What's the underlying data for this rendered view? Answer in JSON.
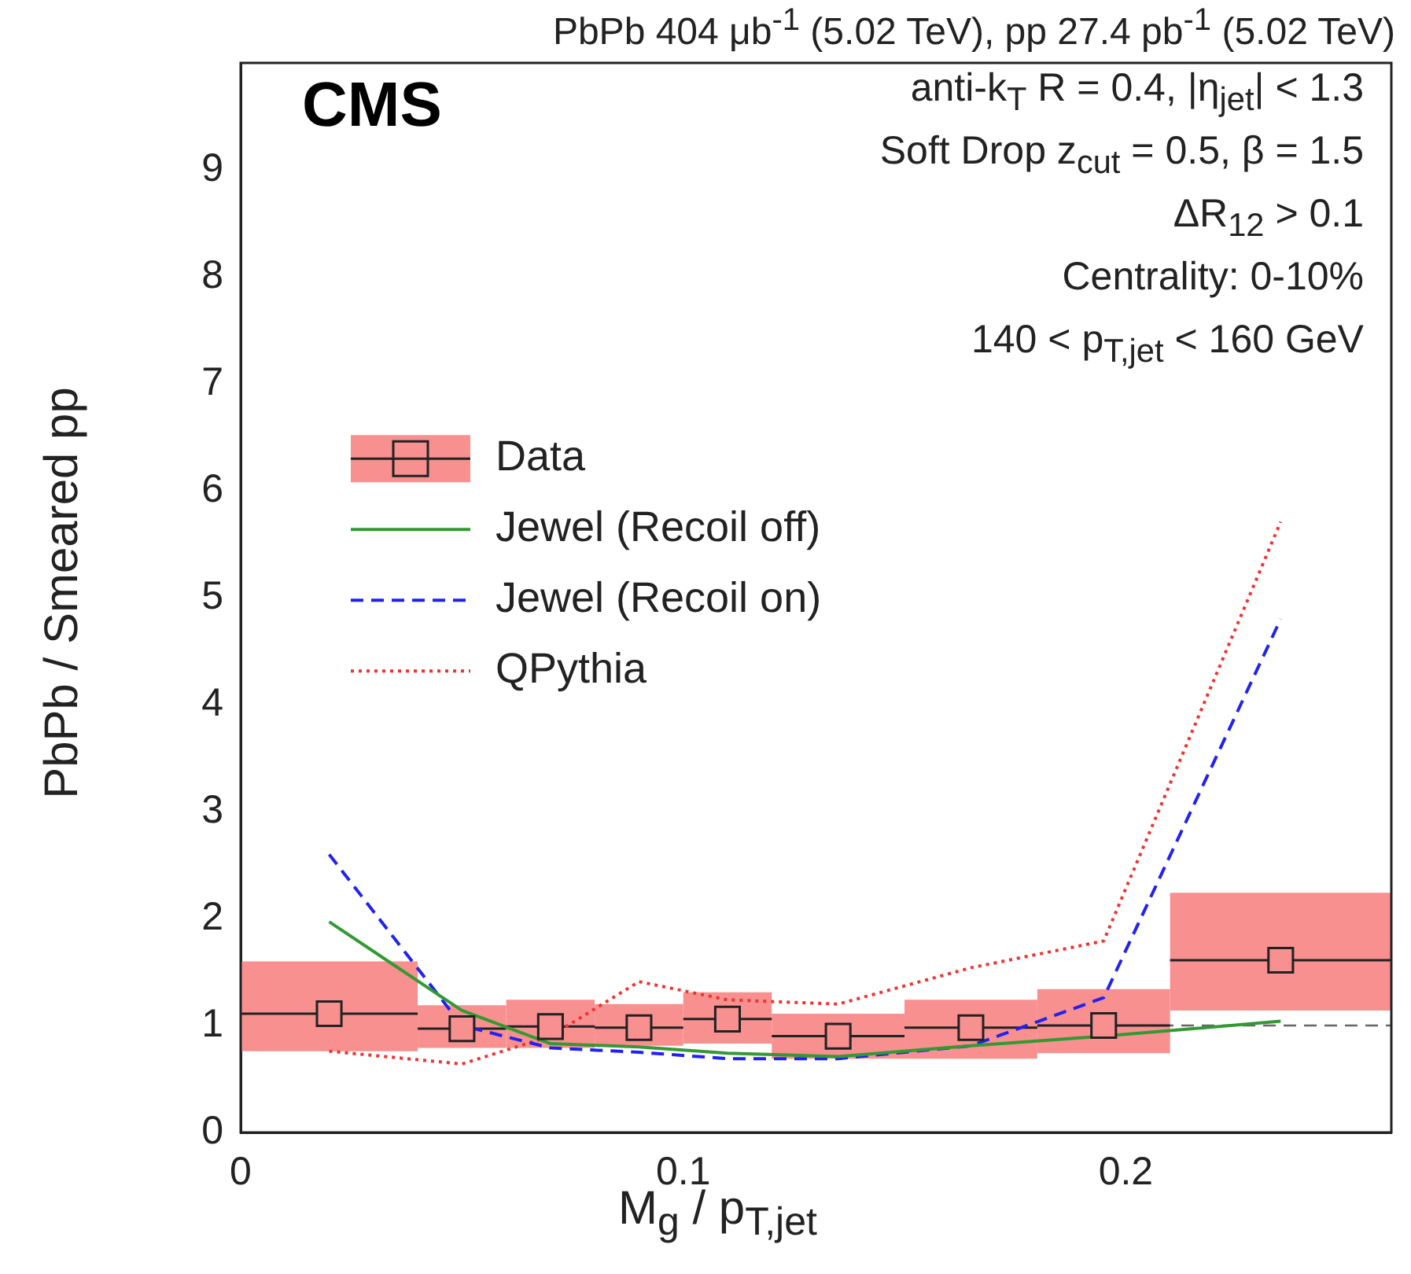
{
  "chart_data": {
    "type": "line",
    "title": "PbPb 404 μb$^{-1}$ (5.02 TeV), pp 27.4 pb$^{-1}$ (5.02 TeV)",
    "xlabel": "M$_{g}$ / p$_{T,jet}$",
    "ylabel": "PbPb / Smeared pp",
    "annotations": [
      "CMS",
      "anti-k$_{T}$ R = 0.4, |η$_{jet}$| < 1.3",
      "Soft Drop z$_{cut}$ = 0.5, β = 1.5",
      "ΔR$_{12}$ > 0.1",
      "Centrality: 0-10%",
      "140 < p$_{T,jet}$ < 160 GeV"
    ],
    "xlim": [
      0,
      0.26
    ],
    "xticks": [
      0,
      0.1,
      0.2
    ],
    "ylim": [
      0,
      10
    ],
    "yticks": [
      0,
      1,
      2,
      3,
      4,
      5,
      6,
      7,
      8,
      9
    ],
    "grid": false,
    "legend": "left",
    "ref_lines": [
      {
        "axis": "y",
        "value": 1,
        "color": "#666666",
        "line_style": "dashed"
      }
    ],
    "series": [
      {
        "type": "bar",
        "color": "#f89090",
        "x": [
          0.02,
          0.05,
          0.07,
          0.09,
          0.11,
          0.135,
          0.165,
          0.195,
          0.235
        ],
        "base": [
          0.76,
          0.79,
          0.79,
          0.81,
          0.83,
          0.69,
          0.69,
          0.74,
          1.14
        ],
        "values": [
          0.84,
          0.4,
          0.45,
          0.39,
          0.48,
          0.42,
          0.55,
          0.6,
          1.1
        ]
      },
      {
        "name": "Data",
        "type": "scatter",
        "marker": "square",
        "color": "#f89090",
        "x": [
          0.02,
          0.05,
          0.07,
          0.09,
          0.11,
          0.135,
          0.165,
          0.195,
          0.235
        ],
        "values": [
          1.11,
          0.97,
          0.99,
          0.98,
          1.06,
          0.9,
          0.98,
          1.0,
          1.61
        ],
        "xerrors": [
          0.02,
          0.01,
          0.01,
          0.01,
          0.01,
          0.015,
          0.015,
          0.015,
          0.025
        ]
      },
      {
        "name": "Jewel (Recoil off)",
        "type": "line",
        "line_style": "solid",
        "color": "#339933",
        "x": [
          0.02,
          0.05,
          0.07,
          0.09,
          0.11,
          0.135,
          0.165,
          0.195,
          0.235
        ],
        "values": [
          1.97,
          1.14,
          0.83,
          0.8,
          0.74,
          0.71,
          0.81,
          0.9,
          1.04
        ]
      },
      {
        "name": "Jewel (Recoil on)",
        "type": "line",
        "line_style": "dashed",
        "color": "#2222ee",
        "x": [
          0.02,
          0.05,
          0.07,
          0.09,
          0.11,
          0.135,
          0.165,
          0.195,
          0.235
        ],
        "values": [
          2.6,
          1.0,
          0.79,
          0.75,
          0.69,
          0.69,
          0.81,
          1.26,
          4.8
        ]
      },
      {
        "name": "QPythia",
        "type": "line",
        "line_style": "dotted",
        "color": "#ee3333",
        "x": [
          0.02,
          0.05,
          0.07,
          0.09,
          0.11,
          0.135,
          0.165,
          0.195,
          0.235
        ],
        "values": [
          0.76,
          0.64,
          0.9,
          1.41,
          1.24,
          1.2,
          1.54,
          1.79,
          5.71
        ]
      }
    ]
  }
}
